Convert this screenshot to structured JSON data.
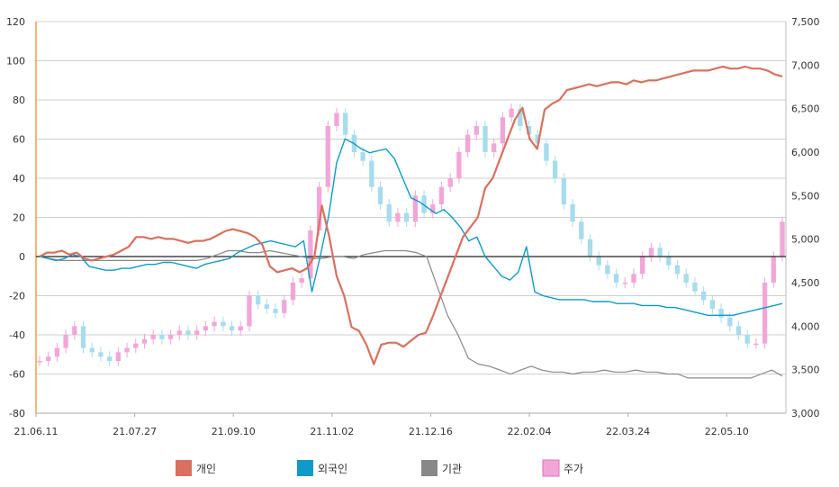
{
  "chart_data": {
    "type": "line",
    "left_axis": {
      "ylim": [
        -80,
        120
      ],
      "ticks": [
        -80,
        -60,
        -40,
        -20,
        0,
        20,
        40,
        60,
        80,
        100,
        120
      ]
    },
    "right_axis": {
      "ylim": [
        3000,
        7500
      ],
      "ticks": [
        3000,
        3500,
        4000,
        4500,
        5000,
        5500,
        6000,
        6500,
        7000,
        7500
      ],
      "tick_labels": [
        "3,000",
        "3,500",
        "4,000",
        "4,500",
        "5,000",
        "5,500",
        "6,000",
        "6,500",
        "7,000",
        "7,500"
      ]
    },
    "x_ticks": [
      "21.06.11",
      "21.07.27",
      "21.09.10",
      "21.11.02",
      "21.12.16",
      "22.02.04",
      "22.03.24",
      "22.05.10"
    ],
    "grid": true,
    "legend_position": "bottom",
    "colors": {
      "individual": "#d9705f",
      "foreign": "#0f9ac8",
      "institution": "#888888",
      "price": "#f2a6d8",
      "price_alt": "#a6dcec"
    },
    "series": [
      {
        "name": "개인",
        "key": "individual",
        "values": [
          0,
          2,
          2,
          3,
          1,
          2,
          -1,
          -2,
          -1,
          0,
          1,
          3,
          5,
          10,
          10,
          9,
          10,
          9,
          9,
          8,
          7,
          8,
          8,
          9,
          11,
          13,
          14,
          13,
          12,
          10,
          6,
          -5,
          -8,
          -7,
          -6,
          -8,
          -6,
          0,
          26,
          10,
          -10,
          -20,
          -36,
          -38,
          -45,
          -55,
          -45,
          -44,
          -44,
          -46,
          -43,
          -40,
          -39,
          -30,
          -20,
          -10,
          0,
          10,
          15,
          20,
          35,
          40,
          50,
          60,
          70,
          76,
          60,
          55,
          75,
          78,
          80,
          85,
          86,
          87,
          88,
          87,
          88,
          89,
          89,
          88,
          90,
          89,
          90,
          90,
          91,
          92,
          93,
          94,
          95,
          95,
          95,
          96,
          97,
          96,
          96,
          97,
          96,
          96,
          95,
          93,
          92
        ],
        "marker": "line"
      },
      {
        "name": "외국인",
        "key": "foreign",
        "values": [
          0,
          -1,
          -2,
          -1,
          1,
          0,
          -5,
          -6,
          -7,
          -7,
          -6,
          -6,
          -5,
          -4,
          -4,
          -3,
          -3,
          -4,
          -5,
          -6,
          -4,
          -3,
          -2,
          -1,
          2,
          4,
          6,
          7,
          8,
          7,
          6,
          5,
          8,
          -18,
          0,
          20,
          48,
          60,
          58,
          55,
          53,
          54,
          55,
          50,
          40,
          30,
          28,
          25,
          22,
          24,
          20,
          15,
          8,
          10,
          0,
          -5,
          -10,
          -12,
          -8,
          5,
          -18,
          -20,
          -21,
          -22,
          -22,
          -22,
          -22,
          -23,
          -23,
          -23,
          -24,
          -24,
          -24,
          -25,
          -25,
          -25,
          -26,
          -26,
          -27,
          -28,
          -29,
          -30,
          -30,
          -30,
          -30,
          -29,
          -28,
          -27,
          -26,
          -25,
          -24
        ],
        "marker": "line"
      },
      {
        "name": "기관",
        "key": "institution",
        "values": [
          0,
          -1,
          -2,
          -2,
          -2,
          -2,
          -2,
          -2,
          -2,
          -2,
          -2,
          -2,
          -2,
          -2,
          -2,
          -2,
          -1,
          1,
          3,
          3,
          2,
          2,
          3,
          2,
          1,
          0,
          -1,
          -1,
          0,
          0,
          -1,
          1,
          2,
          3,
          3,
          3,
          2,
          0,
          -15,
          -30,
          -40,
          -52,
          -55,
          -56,
          -58,
          -60,
          -58,
          -56,
          -58,
          -59,
          -59,
          -60,
          -59,
          -59,
          -58,
          -59,
          -59,
          -58,
          -59,
          -59,
          -60,
          -60,
          -62,
          -62,
          -62,
          -62,
          -62,
          -62,
          -62,
          -60,
          -58,
          -61
        ],
        "marker": "line"
      },
      {
        "name": "주가",
        "key": "price",
        "values": [
          3600,
          3650,
          3750,
          3900,
          4000,
          3750,
          3700,
          3650,
          3600,
          3700,
          3750,
          3800,
          3850,
          3900,
          3850,
          3900,
          3950,
          3900,
          3950,
          4000,
          4050,
          4000,
          3950,
          4000,
          4350,
          4250,
          4200,
          4150,
          4300,
          4500,
          4550,
          5100,
          5600,
          6300,
          6450,
          6200,
          6000,
          5900,
          5600,
          5400,
          5200,
          5300,
          5200,
          5500,
          5300,
          5400,
          5600,
          5700,
          6000,
          6200,
          6300,
          6000,
          6100,
          6400,
          6500,
          6300,
          6200,
          6100,
          5900,
          5700,
          5400,
          5200,
          5000,
          4800,
          4700,
          4600,
          4500,
          4500,
          4600,
          4800,
          4900,
          4800,
          4700,
          4600,
          4500,
          4400,
          4300,
          4200,
          4100,
          4000,
          3900,
          3800,
          3800,
          4500,
          4800,
          5200
        ],
        "marker": "candlestick"
      }
    ]
  }
}
